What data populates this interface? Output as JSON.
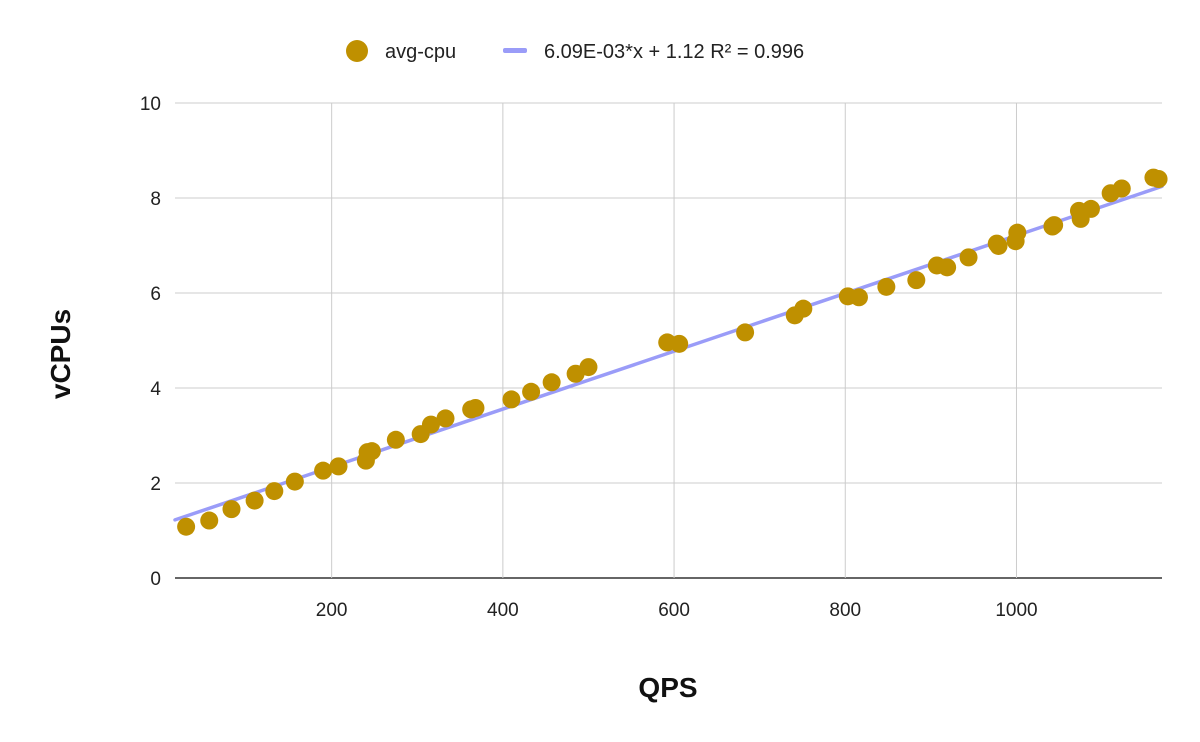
{
  "chart_data": {
    "type": "scatter",
    "xlabel": "QPS",
    "ylabel": "vCPUs",
    "xlim": [
      17,
      1170
    ],
    "ylim": [
      0,
      10
    ],
    "x_ticks": [
      200,
      400,
      600,
      800,
      1000
    ],
    "y_ticks": [
      0,
      2,
      4,
      6,
      8,
      10
    ],
    "grid": true,
    "legend_position": "top",
    "series": [
      {
        "name": "avg-cpu",
        "color": "#bf9000",
        "points": [
          [
            30,
            1.08
          ],
          [
            57,
            1.21
          ],
          [
            83,
            1.45
          ],
          [
            110,
            1.63
          ],
          [
            133,
            1.83
          ],
          [
            157,
            2.03
          ],
          [
            190,
            2.26
          ],
          [
            208,
            2.35
          ],
          [
            240,
            2.47
          ],
          [
            242,
            2.65
          ],
          [
            247,
            2.67
          ],
          [
            275,
            2.91
          ],
          [
            304,
            3.03
          ],
          [
            316,
            3.23
          ],
          [
            333,
            3.36
          ],
          [
            363,
            3.55
          ],
          [
            368,
            3.58
          ],
          [
            410,
            3.76
          ],
          [
            433,
            3.92
          ],
          [
            457,
            4.12
          ],
          [
            485,
            4.3
          ],
          [
            500,
            4.44
          ],
          [
            592,
            4.96
          ],
          [
            606,
            4.93
          ],
          [
            683,
            5.17
          ],
          [
            741,
            5.53
          ],
          [
            751,
            5.67
          ],
          [
            803,
            5.93
          ],
          [
            816,
            5.91
          ],
          [
            848,
            6.13
          ],
          [
            883,
            6.27
          ],
          [
            907,
            6.58
          ],
          [
            919,
            6.54
          ],
          [
            944,
            6.75
          ],
          [
            977,
            7.04
          ],
          [
            979,
            6.99
          ],
          [
            999,
            7.09
          ],
          [
            1001,
            7.27
          ],
          [
            1042,
            7.4
          ],
          [
            1044,
            7.43
          ],
          [
            1073,
            7.73
          ],
          [
            1075,
            7.56
          ],
          [
            1087,
            7.77
          ],
          [
            1110,
            8.1
          ],
          [
            1123,
            8.2
          ],
          [
            1160,
            8.43
          ],
          [
            1166,
            8.4
          ]
        ]
      }
    ],
    "trendline": {
      "name": "6.09E-03*x + 1.12 R² = 0.996",
      "color": "#9a9cf8",
      "slope": 0.00609,
      "intercept": 1.12
    }
  }
}
